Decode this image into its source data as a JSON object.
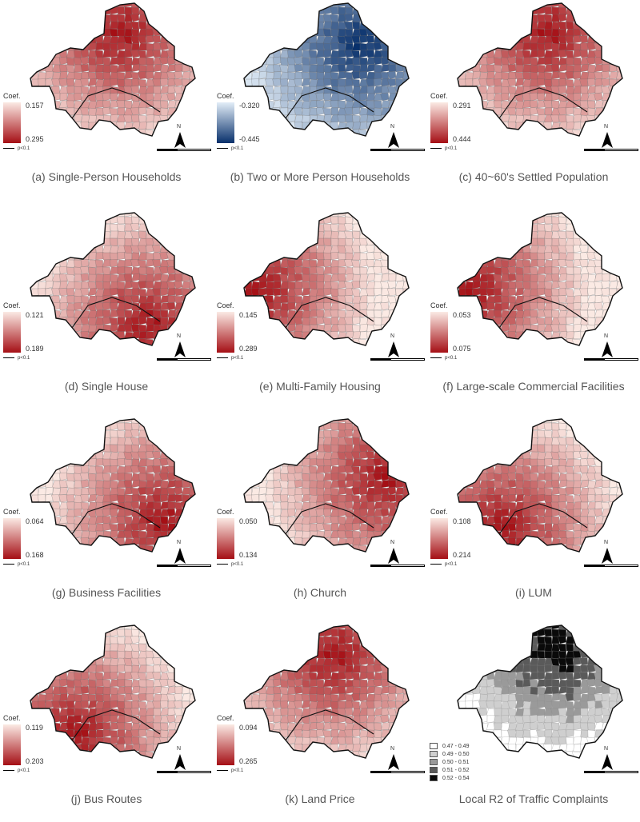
{
  "panels": [
    {
      "caption": "(a) Single-Person Households",
      "legend_title": "Coef.",
      "high": "0.157",
      "low": "0.295",
      "scheme": "red",
      "hotspot": "north-center",
      "sig": "p<0.1"
    },
    {
      "caption": "(b) Two or More Person Households",
      "legend_title": "Coef.",
      "high": "-0.320",
      "low": "-0.445",
      "scheme": "blue",
      "hotspot": "northeast",
      "sig": "p<0.1"
    },
    {
      "caption": "(c) 40~60's Settled Population",
      "legend_title": "Coef.",
      "high": "0.291",
      "low": "0.444",
      "scheme": "red",
      "hotspot": "north-center",
      "sig": "p<0.1"
    },
    {
      "caption": "(d) Single House",
      "legend_title": "Coef.",
      "high": "0.121",
      "low": "0.189",
      "scheme": "red",
      "hotspot": "south",
      "sig": "p<0.1"
    },
    {
      "caption": "(e) Multi-Family Housing",
      "legend_title": "Coef.",
      "high": "0.145",
      "low": "0.289",
      "scheme": "red",
      "hotspot": "west",
      "sig": "p<0.1"
    },
    {
      "caption": "(f) Large-scale Commercial Facilities",
      "legend_title": "Coef.",
      "high": "0.053",
      "low": "0.075",
      "scheme": "red",
      "hotspot": "west",
      "sig": "p<0.1"
    },
    {
      "caption": "(g) Business Facilities",
      "legend_title": "Coef.",
      "high": "0.064",
      "low": "0.168",
      "scheme": "red",
      "hotspot": "southeast",
      "sig": "p<0.1"
    },
    {
      "caption": "(h) Church",
      "legend_title": "Coef.",
      "high": "0.050",
      "low": "0.134",
      "scheme": "red",
      "hotspot": "east",
      "sig": "p<0.1"
    },
    {
      "caption": "(i) LUM",
      "legend_title": "Coef.",
      "high": "0.108",
      "low": "0.214",
      "scheme": "red",
      "hotspot": "southwest",
      "sig": "p<0.1"
    },
    {
      "caption": "(j) Bus Routes",
      "legend_title": "Coef.",
      "high": "0.119",
      "low": "0.203",
      "scheme": "red",
      "hotspot": "southwest",
      "sig": "p<0.1"
    },
    {
      "caption": "(k) Land Price",
      "legend_title": "Coef.",
      "high": "0.094",
      "low": "0.265",
      "scheme": "red",
      "hotspot": "north-center",
      "sig": "p<0.1"
    },
    {
      "caption": "Local R2 of Traffic Complaints",
      "scheme": "gray",
      "hotspot": "north",
      "classes": [
        "0.47 - 0.49",
        "0.49 - 0.50",
        "0.50 - 0.51",
        "0.51 - 0.52",
        "0.52 - 0.54"
      ]
    }
  ],
  "north_label": "N",
  "colors": {
    "red_low": "#fbeae4",
    "red_high": "#a50f15",
    "blue_low": "#e3eef8",
    "blue_high": "#08306b",
    "gray_classes": [
      "#ffffff",
      "#cfcfcf",
      "#9a9a9a",
      "#5a5a5a",
      "#0a0a0a"
    ]
  }
}
